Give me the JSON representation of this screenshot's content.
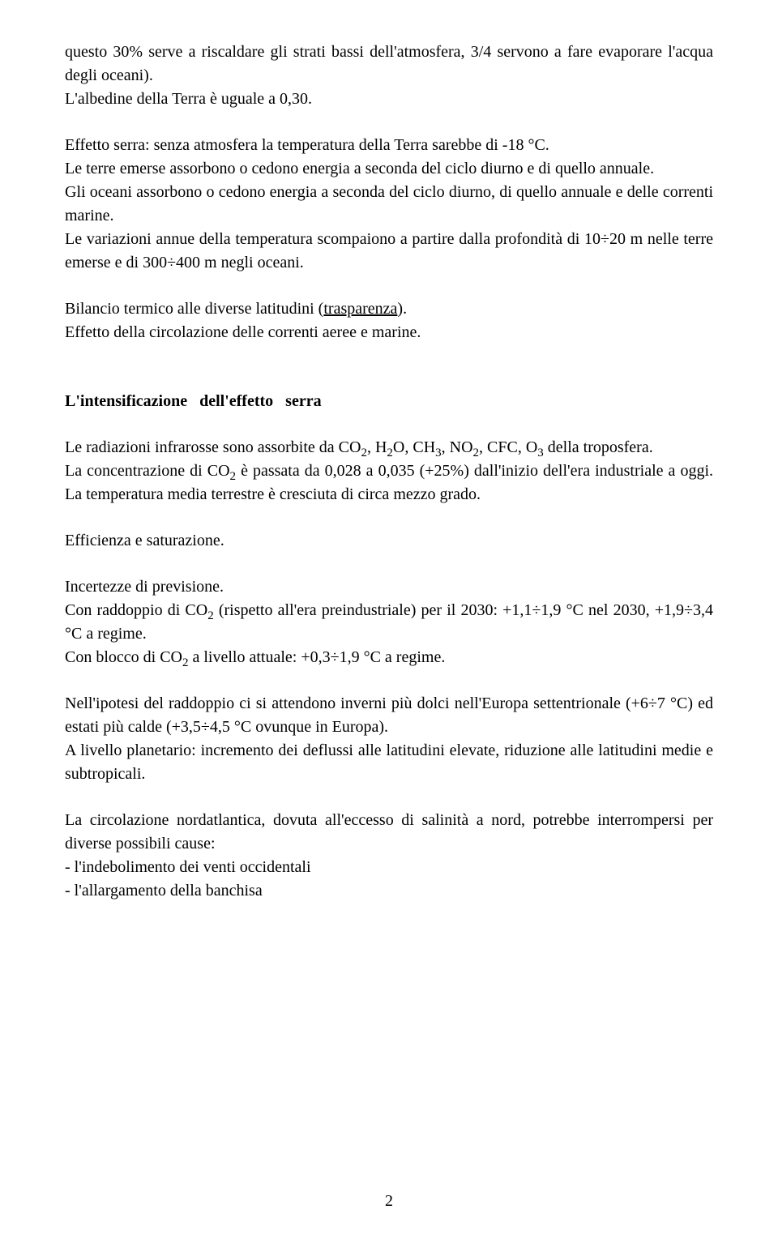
{
  "page_number": "2",
  "para1_a": "questo 30% serve a riscaldare gli strati bassi dell'atmosfera, 3/4 servono a fare evaporare l'acqua degli oceani).",
  "para1_b": "L'albedine della Terra è uguale a 0,30.",
  "para2_a": "Effetto serra: senza atmosfera la temperatura della Terra sarebbe di -18 °C.",
  "para2_b": "Le terre emerse assorbono o cedono energia a seconda del ciclo diurno e di quello annuale.",
  "para2_c": "Gli oceani assorbono o cedono energia a seconda del ciclo diurno, di quello annuale e delle correnti marine.",
  "para2_d": "Le variazioni annue della temperatura scompaiono a partire dalla profondità di 10÷20 m nelle terre emerse e di 300÷400 m negli oceani.",
  "para3_a_pre": "Bilancio termico alle diverse latitudini (",
  "para3_a_u": "trasparenza",
  "para3_a_post": ").",
  "para3_b": "Effetto della circolazione delle correnti aeree e marine.",
  "heading1": "L'intensificazione dell'effetto serra",
  "para4_a_pre": "Le radiazioni infrarosse sono assorbite da CO",
  "para4_a_mid1": ", H",
  "para4_a_mid2": "O, CH",
  "para4_a_mid3": ", NO",
  "para4_a_mid4": ", CFC, O",
  "para4_a_post": " della troposfera.",
  "sub2": "2",
  "sub3": "3",
  "para4_b_pre": "La concentrazione di CO",
  "para4_b_post": " è passata da 0,028 a 0,035 (+25%) dall'inizio dell'era industriale a oggi. La temperatura media terrestre è cresciuta di circa mezzo grado.",
  "para5": "Efficienza e saturazione.",
  "para6_a": "Incertezze di previsione.",
  "para6_b_pre": "Con raddoppio di CO",
  "para6_b_post": " (rispetto all'era preindustriale) per il 2030: +1,1÷1,9 °C nel 2030, +1,9÷3,4 °C a regime.",
  "para6_c_pre": "Con blocco di CO",
  "para6_c_post": " a livello attuale: +0,3÷1,9 °C a regime.",
  "para7_a": "Nell'ipotesi del raddoppio ci si attendono inverni più dolci nell'Europa settentrionale (+6÷7 °C) ed estati più calde (+3,5÷4,5 °C ovunque in Europa).",
  "para7_b": "A livello planetario: incremento dei deflussi alle latitudini elevate, riduzione alle latitudini medie e subtropicali.",
  "para8_a": "La circolazione nordatlantica, dovuta all'eccesso di salinità a nord, potrebbe interrompersi per diverse possibili cause:",
  "para8_b": "- l'indebolimento dei venti occidentali",
  "para8_c": "- l'allargamento della banchisa"
}
